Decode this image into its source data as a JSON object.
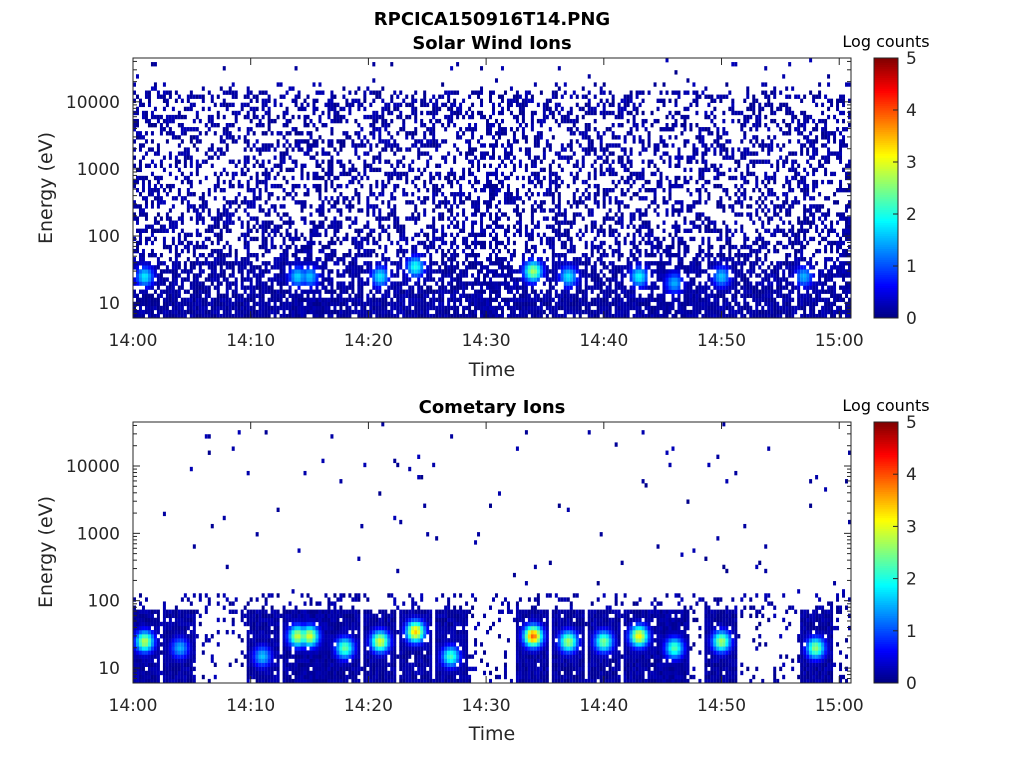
{
  "figure_title": "RPCICA150916T14.PNG",
  "chart_data": [
    {
      "type": "heatmap",
      "title": "Solar Wind Ions",
      "xlabel": "Time",
      "ylabel": "Energy (eV)",
      "x_range": [
        "14:00",
        "15:01"
      ],
      "x_ticks": [
        "14:00",
        "14:10",
        "14:20",
        "14:30",
        "14:40",
        "14:50",
        "15:00"
      ],
      "y_scale": "log",
      "y_range": [
        6,
        45000
      ],
      "y_ticks": [
        "10",
        "100",
        "1000",
        "10000"
      ],
      "colorbar": {
        "label": "Log counts",
        "min": 0,
        "max": 5,
        "ticks": [
          "0",
          "1",
          "2",
          "3",
          "4",
          "5"
        ],
        "colormap": "jet"
      },
      "hotspots": [
        {
          "time": "14:01",
          "energy_ev": 25,
          "log_counts": 1.8
        },
        {
          "time": "14:14",
          "energy_ev": 25,
          "log_counts": 1.7
        },
        {
          "time": "14:15",
          "energy_ev": 25,
          "log_counts": 1.6
        },
        {
          "time": "14:21",
          "energy_ev": 25,
          "log_counts": 1.8
        },
        {
          "time": "14:24",
          "energy_ev": 35,
          "log_counts": 2.0
        },
        {
          "time": "14:34",
          "energy_ev": 30,
          "log_counts": 2.7
        },
        {
          "time": "14:37",
          "energy_ev": 25,
          "log_counts": 1.8
        },
        {
          "time": "14:43",
          "energy_ev": 25,
          "log_counts": 1.9
        },
        {
          "time": "14:46",
          "energy_ev": 20,
          "log_counts": 1.5
        },
        {
          "time": "14:50",
          "energy_ev": 25,
          "log_counts": 1.6
        },
        {
          "time": "14:57",
          "energy_ev": 25,
          "log_counts": 1.5
        }
      ]
    },
    {
      "type": "heatmap",
      "title": "Cometary Ions",
      "xlabel": "Time",
      "ylabel": "Energy (eV)",
      "x_range": [
        "14:00",
        "15:01"
      ],
      "x_ticks": [
        "14:00",
        "14:10",
        "14:20",
        "14:30",
        "14:40",
        "14:50",
        "15:00"
      ],
      "y_scale": "log",
      "y_range": [
        6,
        45000
      ],
      "y_ticks": [
        "10",
        "100",
        "1000",
        "10000"
      ],
      "colorbar": {
        "label": "Log counts",
        "min": 0,
        "max": 5,
        "ticks": [
          "0",
          "1",
          "2",
          "3",
          "4",
          "5"
        ],
        "colormap": "jet"
      },
      "hotspots": [
        {
          "time": "14:01",
          "energy_ev": 25,
          "log_counts": 2.8
        },
        {
          "time": "14:04",
          "energy_ev": 20,
          "log_counts": 1.5
        },
        {
          "time": "14:11",
          "energy_ev": 15,
          "log_counts": 1.6
        },
        {
          "time": "14:14",
          "energy_ev": 30,
          "log_counts": 2.9
        },
        {
          "time": "14:15",
          "energy_ev": 30,
          "log_counts": 3.0
        },
        {
          "time": "14:18",
          "energy_ev": 20,
          "log_counts": 2.4
        },
        {
          "time": "14:21",
          "energy_ev": 25,
          "log_counts": 3.0
        },
        {
          "time": "14:24",
          "energy_ev": 35,
          "log_counts": 3.4
        },
        {
          "time": "14:27",
          "energy_ev": 15,
          "log_counts": 2.2
        },
        {
          "time": "14:34",
          "energy_ev": 30,
          "log_counts": 3.9
        },
        {
          "time": "14:37",
          "energy_ev": 25,
          "log_counts": 2.7
        },
        {
          "time": "14:40",
          "energy_ev": 25,
          "log_counts": 2.5
        },
        {
          "time": "14:43",
          "energy_ev": 30,
          "log_counts": 3.2
        },
        {
          "time": "14:46",
          "energy_ev": 20,
          "log_counts": 2.3
        },
        {
          "time": "14:50",
          "energy_ev": 25,
          "log_counts": 2.7
        },
        {
          "time": "14:58",
          "energy_ev": 20,
          "log_counts": 2.6
        }
      ]
    }
  ]
}
